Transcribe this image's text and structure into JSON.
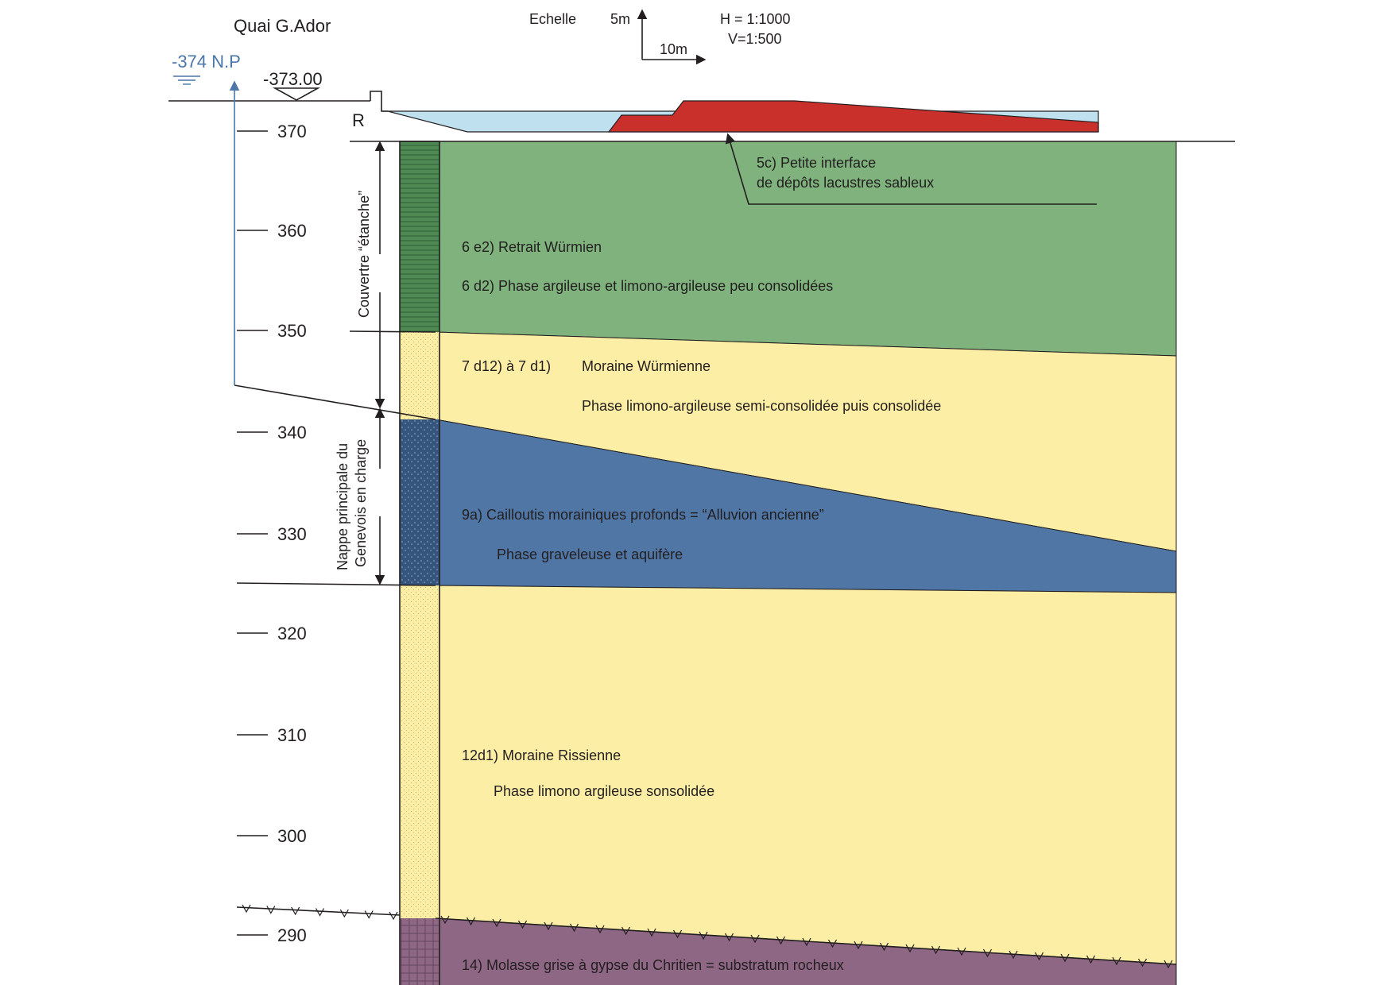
{
  "header": {
    "location": "Quai G.Ador",
    "scale_title": "Echelle",
    "scale_vertical": "5m",
    "scale_horizontal": "10m",
    "scale_h": "H = 1:1000",
    "scale_v": "V=1:500"
  },
  "water_level": {
    "label": "-374 N.P",
    "color": "#4a76a8"
  },
  "ground_level": {
    "label": "-373.00"
  },
  "road_label": "R",
  "depth_ticks": [
    "370",
    "360",
    "350",
    "340",
    "330",
    "320",
    "310",
    "300",
    "290"
  ],
  "side_labels": {
    "couverture": "Couvertre “étanche”",
    "nappe_line1": "Nappe principale du",
    "nappe_line2": "Genevois en charge"
  },
  "annotations": {
    "c5_line1": "5c) Petite interface",
    "c5_line2": "de dépôts lacustres sableux"
  },
  "layers": {
    "green_label1": "6 e2) Retrait Würmien",
    "green_label2": "6 d2) Phase argileuse et limono-argileuse peu consolidées",
    "moraine_code": "7 d12) à 7 d1)",
    "moraine_name": "Moraine Würmienne",
    "moraine_phase": "Phase limono-argileuse semi-consolidée puis consolidée",
    "blue_label1": "9a) Cailloutis morainiques profonds = “Alluvion ancienne”",
    "blue_label2": "Phase graveleuse et aquifère",
    "riss_label1": "12d1) Moraine Rissienne",
    "riss_label2": "Phase limono argileuse sonsolidée",
    "molasse_label": "14) Molasse grise à gypse du Chritien = substratum rocheux"
  },
  "colors": {
    "green": "#7fb27d",
    "yellow": "#fdeea5",
    "blue": "#4f76a5",
    "purple": "#8e6785",
    "red": "#c9302c",
    "light_blue": "#bfe0ef"
  }
}
